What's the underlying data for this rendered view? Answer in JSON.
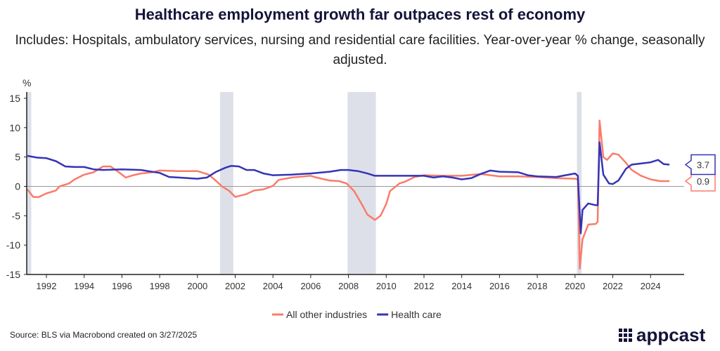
{
  "chart_data": {
    "type": "line",
    "title": "Healthcare employment growth far outpaces rest of economy",
    "subtitle": "Includes: Hospitals, ambulatory services, nursing and residential care facilities. Year-over-year % change, seasonally adjusted.",
    "ylabel": "%",
    "ylim": [
      -15,
      15
    ],
    "yticks": [
      15,
      10,
      5,
      0,
      -5,
      -10,
      -15
    ],
    "xlim": [
      1991,
      2026
    ],
    "xticks": [
      1992,
      1994,
      1996,
      1998,
      2000,
      2002,
      2004,
      2006,
      2008,
      2010,
      2012,
      2014,
      2016,
      2018,
      2020,
      2022,
      2024
    ],
    "legend_position": "bottom",
    "recessions": [
      [
        1990.6,
        1991.2
      ],
      [
        2001.2,
        2001.9
      ],
      [
        2007.95,
        2009.45
      ],
      [
        2020.1,
        2020.35
      ]
    ],
    "series": [
      {
        "name": "All other industries",
        "color": "#fa7b6b",
        "end_label": "0.9",
        "x": [
          1991,
          1991.3,
          1991.6,
          1992,
          1992.5,
          1992.7,
          1993.2,
          1993.5,
          1994,
          1994.5,
          1995,
          1995.4,
          1995.8,
          1996.2,
          1996.6,
          1997,
          1997.6,
          1998,
          1999,
          2000,
          2000.6,
          2001,
          2001.3,
          2001.7,
          2002,
          2002.6,
          2003,
          2003.5,
          2004,
          2004.3,
          2005,
          2006,
          2006.3,
          2007,
          2007.5,
          2007.9,
          2008.3,
          2008.7,
          2009,
          2009.4,
          2009.7,
          2010,
          2010.2,
          2010.7,
          2011,
          2011.5,
          2012,
          2013,
          2014,
          2015,
          2016,
          2017,
          2018,
          2019,
          2020,
          2020.15,
          2020.25,
          2020.4,
          2020.7,
          2021.1,
          2021.2,
          2021.3,
          2021.5,
          2021.7,
          2022,
          2022.3,
          2022.7,
          2023,
          2023.5,
          2024,
          2024.5,
          2025
        ],
        "y": [
          -0.5,
          -1.8,
          -1.8,
          -1.2,
          -0.7,
          0,
          0.5,
          1.2,
          2,
          2.4,
          3.4,
          3.4,
          2.5,
          1.5,
          1.9,
          2.2,
          2.4,
          2.7,
          2.6,
          2.6,
          2,
          0.9,
          0,
          -0.8,
          -1.8,
          -1.3,
          -0.7,
          -0.5,
          0.1,
          1.1,
          1.5,
          1.8,
          1.5,
          1,
          0.9,
          0.5,
          -0.8,
          -3,
          -4.8,
          -5.7,
          -5,
          -3,
          -0.8,
          0.5,
          0.8,
          1.6,
          1.9,
          1.8,
          1.8,
          2.1,
          1.7,
          1.7,
          1.6,
          1.4,
          1.3,
          1.2,
          -14,
          -9,
          -6.5,
          -6.4,
          -6,
          11.2,
          5,
          4.5,
          5.6,
          5.4,
          4,
          2.8,
          1.8,
          1.2,
          0.9,
          0.9
        ]
      },
      {
        "name": "Health care",
        "color": "#3434b8",
        "end_label": "3.7",
        "x": [
          1991,
          1991.5,
          1992,
          1992.5,
          1993,
          1993.5,
          1994,
          1994.5,
          1995,
          1996,
          1997,
          1998,
          1998.5,
          1999,
          2000,
          2000.5,
          2001,
          2001.5,
          2001.8,
          2002.2,
          2002.6,
          2003,
          2003.5,
          2004,
          2005,
          2005.5,
          2006,
          2007,
          2007.6,
          2008,
          2008.5,
          2009,
          2009.4,
          2010,
          2011,
          2012,
          2012.5,
          2013,
          2013.5,
          2014,
          2014.5,
          2015,
          2015.5,
          2016,
          2017,
          2017.5,
          2018,
          2019,
          2019.5,
          2020,
          2020.15,
          2020.3,
          2020.4,
          2020.7,
          2021.1,
          2021.2,
          2021.3,
          2021.5,
          2021.8,
          2022,
          2022.3,
          2022.7,
          2023,
          2023.5,
          2024,
          2024.4,
          2024.7,
          2025
        ],
        "y": [
          5.2,
          4.9,
          4.8,
          4.3,
          3.4,
          3.3,
          3.3,
          2.9,
          2.8,
          2.9,
          2.8,
          2.3,
          1.6,
          1.5,
          1.3,
          1.5,
          2.5,
          3.2,
          3.5,
          3.4,
          2.8,
          2.8,
          2.2,
          1.9,
          2,
          2.1,
          2.2,
          2.5,
          2.8,
          2.8,
          2.6,
          2.2,
          1.8,
          1.8,
          1.8,
          1.8,
          1.5,
          1.7,
          1.5,
          1.2,
          1.4,
          2.1,
          2.7,
          2.5,
          2.4,
          1.9,
          1.7,
          1.6,
          1.9,
          2.2,
          1.8,
          -8,
          -4,
          -2.9,
          -3.2,
          -3.2,
          7.5,
          2,
          0.5,
          0.4,
          1,
          3,
          3.7,
          3.9,
          4.1,
          4.5,
          3.8,
          3.7
        ]
      }
    ]
  },
  "source": "Source: BLS via Macrobond created on 3/27/2025",
  "logo": "appcast"
}
